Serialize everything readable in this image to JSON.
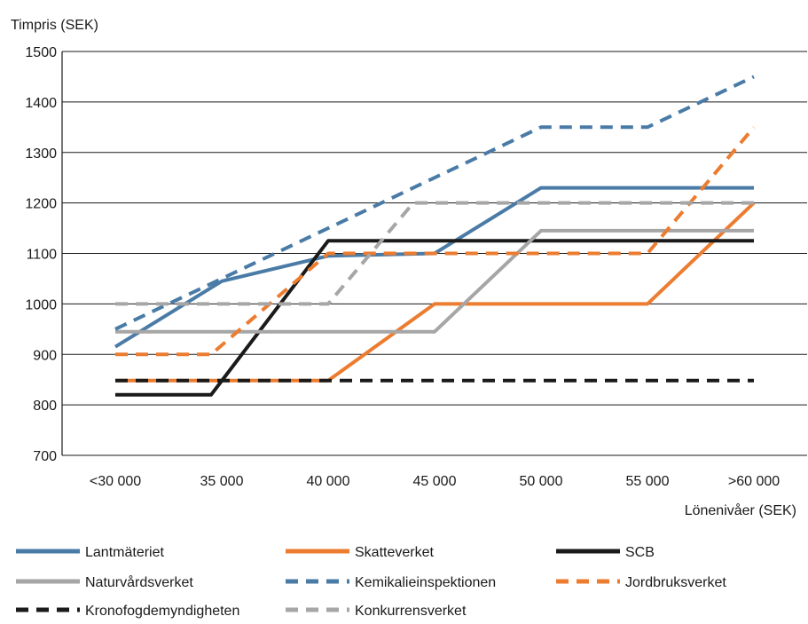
{
  "chart_data": {
    "type": "line",
    "ylabel": "Timpris (SEK)",
    "xlabel": "Lönenivåer (SEK)",
    "categories": [
      "<30 000",
      "35 000",
      "40 000",
      "45 000",
      "50 000",
      "55 000",
      ">60 000"
    ],
    "ylim": [
      700,
      1500
    ],
    "yticks": [
      700,
      800,
      900,
      1000,
      1100,
      1200,
      1300,
      1400,
      1500
    ],
    "grid": true,
    "legend_position": "bottom",
    "series": [
      {
        "name": "Lantmäteriet",
        "color": "#4a7ba6",
        "style": "solid",
        "points": [
          [
            0,
            915
          ],
          [
            1,
            1045
          ],
          [
            2,
            1095
          ],
          [
            3,
            1100
          ],
          [
            4,
            1230
          ],
          [
            5,
            1230
          ],
          [
            6,
            1230
          ]
        ]
      },
      {
        "name": "Skatteverket",
        "color": "#ec7c30",
        "style": "solid",
        "points": [
          [
            0,
            848
          ],
          [
            2,
            848
          ],
          [
            3,
            1000
          ],
          [
            4,
            1000
          ],
          [
            5,
            1000
          ],
          [
            6,
            1200
          ]
        ]
      },
      {
        "name": "SCB",
        "color": "#1a1a1a",
        "style": "solid",
        "points": [
          [
            0,
            820
          ],
          [
            0.9,
            820
          ],
          [
            2,
            1125
          ],
          [
            3,
            1125
          ],
          [
            4,
            1125
          ],
          [
            5,
            1125
          ],
          [
            6,
            1125
          ]
        ]
      },
      {
        "name": "Naturvårdsverket",
        "color": "#a6a6a6",
        "style": "solid",
        "points": [
          [
            0,
            945
          ],
          [
            3,
            945
          ],
          [
            4,
            1145
          ],
          [
            5,
            1145
          ],
          [
            6,
            1145
          ]
        ]
      },
      {
        "name": "Kemikalieinspektionen",
        "color": "#4a7ba6",
        "style": "dashed",
        "points": [
          [
            0,
            950
          ],
          [
            1,
            1050
          ],
          [
            2,
            1150
          ],
          [
            3,
            1250
          ],
          [
            4,
            1350
          ],
          [
            5,
            1350
          ],
          [
            6,
            1450
          ]
        ]
      },
      {
        "name": "Jordbruksverket",
        "color": "#ec7c30",
        "style": "dashed",
        "points": [
          [
            0,
            900
          ],
          [
            0.9,
            900
          ],
          [
            2,
            1100
          ],
          [
            3,
            1100
          ],
          [
            4,
            1100
          ],
          [
            5,
            1100
          ],
          [
            6,
            1350
          ]
        ]
      },
      {
        "name": "Kronofogdemyndigheten",
        "color": "#1a1a1a",
        "style": "dashed",
        "points": [
          [
            0,
            848
          ],
          [
            1,
            848
          ],
          [
            2,
            848
          ],
          [
            3,
            848
          ],
          [
            4,
            848
          ],
          [
            5,
            848
          ],
          [
            6,
            848
          ]
        ]
      },
      {
        "name": "Konkurrensverket",
        "color": "#a6a6a6",
        "style": "dashed",
        "points": [
          [
            0,
            1000
          ],
          [
            2,
            1000
          ],
          [
            2.8,
            1200
          ],
          [
            3,
            1200
          ],
          [
            4,
            1200
          ],
          [
            5,
            1200
          ],
          [
            6,
            1200
          ]
        ]
      }
    ]
  }
}
